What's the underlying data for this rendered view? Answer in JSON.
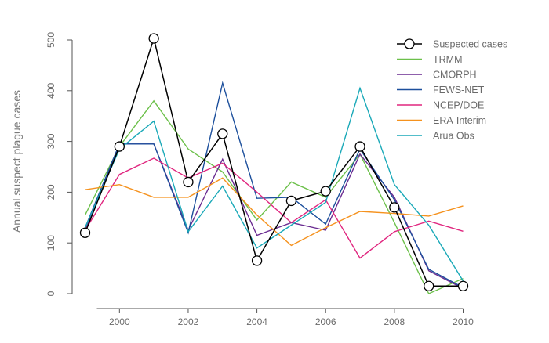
{
  "chart_data": {
    "type": "line",
    "title": "",
    "xlabel": "",
    "ylabel": "Annual suspect plague cases",
    "x": [
      1999,
      2000,
      2001,
      2002,
      2003,
      2004,
      2005,
      2006,
      2007,
      2008,
      2009,
      2010
    ],
    "xticks": [
      2000,
      2002,
      2004,
      2006,
      2008,
      2010
    ],
    "yticks": [
      0,
      100,
      200,
      300,
      400,
      500
    ],
    "xlim": [
      1998.9,
      2010.5
    ],
    "ylim": [
      0,
      510
    ],
    "grid": false,
    "legend_position": "top-right",
    "series": [
      {
        "name": "Suspected cases",
        "color": "#000000",
        "markers": true,
        "values": [
          120,
          290,
          503,
          220,
          315,
          65,
          183,
          202,
          290,
          170,
          15,
          15
        ]
      },
      {
        "name": "TRMM",
        "color": "#6cc04a",
        "markers": false,
        "values": [
          155,
          290,
          380,
          285,
          240,
          145,
          220,
          190,
          275,
          140,
          0,
          30
        ]
      },
      {
        "name": "CMORPH",
        "color": "#6a2c91",
        "markers": false,
        "values": [
          125,
          295,
          295,
          125,
          265,
          115,
          140,
          125,
          275,
          190,
          45,
          10
        ]
      },
      {
        "name": "FEWS-NET",
        "color": "#1c4f9c",
        "markers": false,
        "values": [
          130,
          295,
          295,
          120,
          415,
          188,
          190,
          137,
          285,
          185,
          48,
          12
        ]
      },
      {
        "name": "NCEP/DOE",
        "color": "#e0267f",
        "markers": false,
        "values": [
          125,
          235,
          267,
          228,
          257,
          200,
          140,
          185,
          70,
          122,
          143,
          123
        ]
      },
      {
        "name": "ERA-Interim",
        "color": "#f5921e",
        "markers": false,
        "values": [
          205,
          215,
          190,
          190,
          228,
          155,
          95,
          130,
          162,
          158,
          153,
          173
        ]
      },
      {
        "name": "Arua Obs",
        "color": "#1aa9b8",
        "markers": false,
        "values": [
          130,
          285,
          340,
          122,
          212,
          90,
          135,
          180,
          405,
          215,
          135,
          25
        ]
      }
    ]
  }
}
